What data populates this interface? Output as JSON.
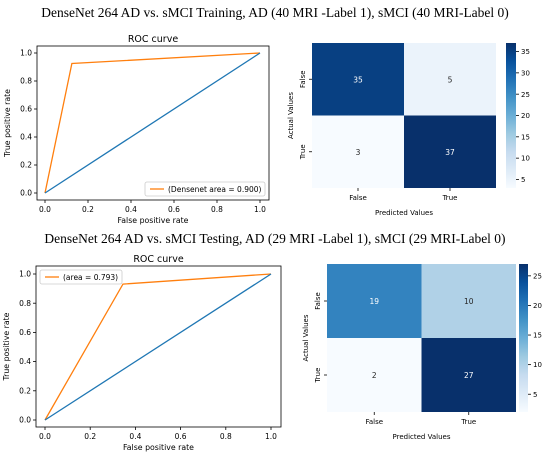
{
  "figure": {
    "training_title": "DenseNet 264 AD vs. sMCI Training, AD (40 MRI -Label 1), sMCI (40 MRI-Label 0)",
    "testing_title": "DenseNet 264 AD vs. sMCI Testing, AD (29 MRI -Label 1), sMCI (29 MRI-Label 0)"
  },
  "chart_data": [
    {
      "type": "line",
      "panel": "training-roc",
      "title": "ROC curve",
      "xlabel": "False positive rate",
      "ylabel": "True positive rate",
      "xlim": [
        0,
        1
      ],
      "ylim": [
        0,
        1
      ],
      "xticks": [
        "0.0",
        "0.2",
        "0.4",
        "0.6",
        "0.8",
        "1.0"
      ],
      "yticks": [
        "0.0",
        "0.2",
        "0.4",
        "0.6",
        "0.8",
        "1.0"
      ],
      "legend_position": "lower-right",
      "series": [
        {
          "name": "(Densenet area = 0.900)",
          "color": "#ff7f0e",
          "x": [
            0,
            0.125,
            1
          ],
          "y": [
            0,
            0.925,
            1
          ]
        },
        {
          "color": "#1f77b4",
          "x": [
            0,
            1
          ],
          "y": [
            0,
            1
          ]
        }
      ],
      "grid": false
    },
    {
      "type": "heatmap",
      "panel": "training-confusion",
      "xlabel": "Predicted Values",
      "ylabel": "Actual Values",
      "x_categories": [
        "False",
        "True"
      ],
      "y_categories": [
        "False",
        "True"
      ],
      "values": [
        [
          35,
          5
        ],
        [
          3,
          37
        ]
      ],
      "colormap": "Blues",
      "colorbar_ticks": [
        5,
        10,
        15,
        20,
        25,
        30,
        35
      ]
    },
    {
      "type": "line",
      "panel": "testing-roc",
      "title": "ROC curve",
      "xlabel": "False positive rate",
      "ylabel": "True positive rate",
      "xlim": [
        0,
        1
      ],
      "ylim": [
        0,
        1
      ],
      "xticks": [
        "0.0",
        "0.2",
        "0.4",
        "0.6",
        "0.8",
        "1.0"
      ],
      "yticks": [
        "0.0",
        "0.2",
        "0.4",
        "0.6",
        "0.8",
        "1.0"
      ],
      "legend_position": "upper-left",
      "series": [
        {
          "name": "(area = 0.793)",
          "color": "#ff7f0e",
          "x": [
            0,
            0.345,
            1
          ],
          "y": [
            0,
            0.931,
            1
          ]
        },
        {
          "color": "#1f77b4",
          "x": [
            0,
            1
          ],
          "y": [
            0,
            1
          ]
        }
      ],
      "grid": false
    },
    {
      "type": "heatmap",
      "panel": "testing-confusion",
      "xlabel": "Predicted Values",
      "ylabel": "Actual Values",
      "x_categories": [
        "False",
        "True"
      ],
      "y_categories": [
        "False",
        "True"
      ],
      "values": [
        [
          19,
          10
        ],
        [
          2,
          27
        ]
      ],
      "colormap": "Blues",
      "colorbar_ticks": [
        5,
        10,
        15,
        20,
        25
      ]
    }
  ]
}
